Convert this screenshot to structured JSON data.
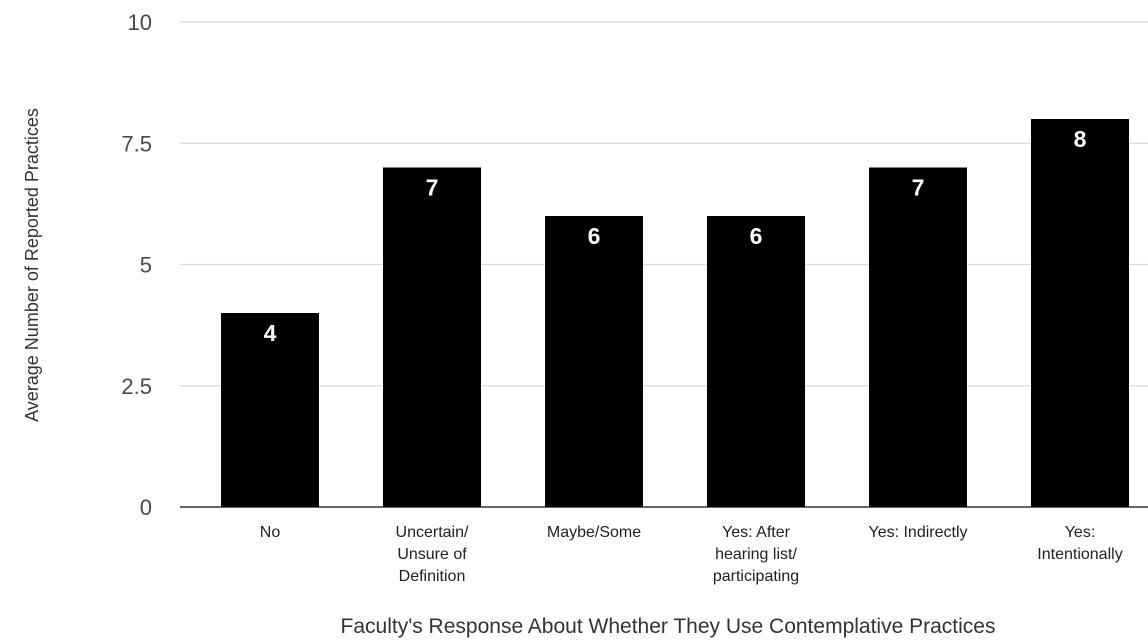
{
  "chart_data": {
    "type": "bar",
    "categories": [
      [
        "No"
      ],
      [
        "Uncertain/",
        "Unsure of",
        "Definition"
      ],
      [
        "Maybe/Some"
      ],
      [
        "Yes: After",
        "hearing list/",
        "participating"
      ],
      [
        "Yes: Indirectly"
      ],
      [
        "Yes:",
        "Intentionally"
      ]
    ],
    "values": [
      4,
      7,
      6,
      6,
      7,
      8
    ],
    "data_labels": [
      "4",
      "7",
      "6",
      "6",
      "7",
      "8"
    ],
    "xlabel": "Faculty's Response About Whether They Use Contemplative Practices",
    "ylabel": "Average Number of Reported Practices",
    "ylim": [
      0,
      10
    ],
    "yticks": [
      0,
      2.5,
      5,
      7.5,
      10
    ],
    "ytick_labels": [
      "0",
      "2.5",
      "5",
      "7.5",
      "10"
    ],
    "grid": true,
    "bar_color": "#000000",
    "grid_color": "#d9d9d9",
    "label_color": "#ffffff"
  }
}
